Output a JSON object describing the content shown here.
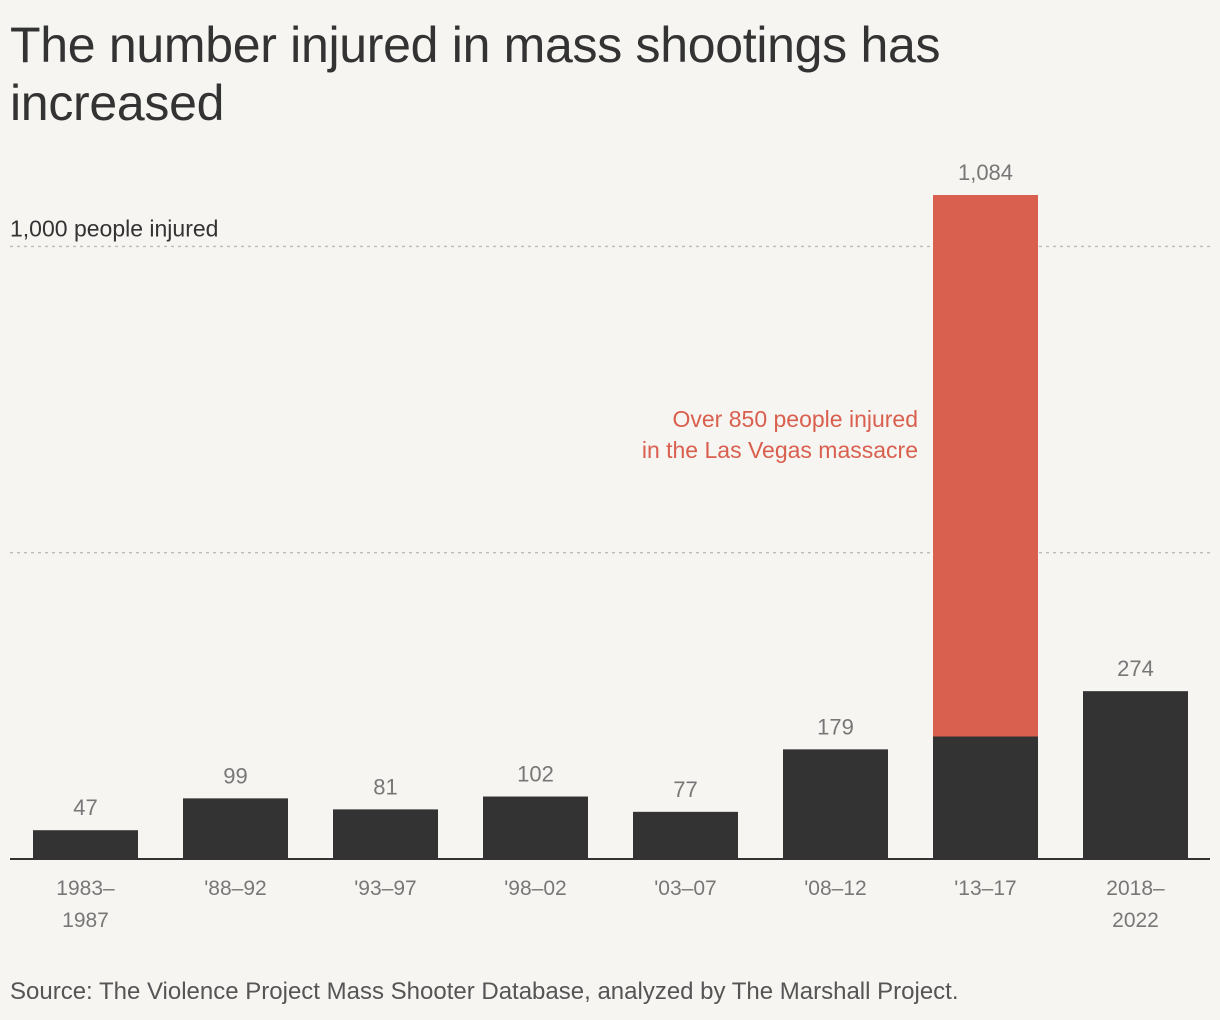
{
  "title": "The number injured in mass shootings has increased",
  "source": "Source: The Violence Project Mass Shooter Database, analyzed by The Marshall Project.",
  "colors": {
    "bar": "#333333",
    "highlight": "#d95f4e",
    "value_label": "#777777",
    "tick_label": "#777777",
    "gridline": "#bbbbbb",
    "axis": "#333333"
  },
  "chart_data": {
    "type": "bar",
    "ylim": [
      0,
      1084
    ],
    "grid": true,
    "categories": [
      [
        "1983–",
        "1987"
      ],
      [
        "'88–92"
      ],
      [
        "'93–97"
      ],
      [
        "'98–02"
      ],
      [
        "'03–07"
      ],
      [
        "'08–12"
      ],
      [
        "'13–17"
      ],
      [
        "2018–",
        "2022"
      ]
    ],
    "values": [
      47,
      99,
      81,
      102,
      77,
      179,
      1084,
      274
    ],
    "value_labels": [
      "47",
      "99",
      "81",
      "102",
      "77",
      "179",
      "1,084",
      "274"
    ],
    "highlight": {
      "category_index": 6,
      "base_value": 200,
      "annotation": [
        "Over 850 people injured",
        "in the Las Vegas massacre"
      ]
    },
    "reference_lines": [
      {
        "value": 500,
        "label": ""
      },
      {
        "value": 1000,
        "label": "1,000 people injured"
      }
    ]
  }
}
